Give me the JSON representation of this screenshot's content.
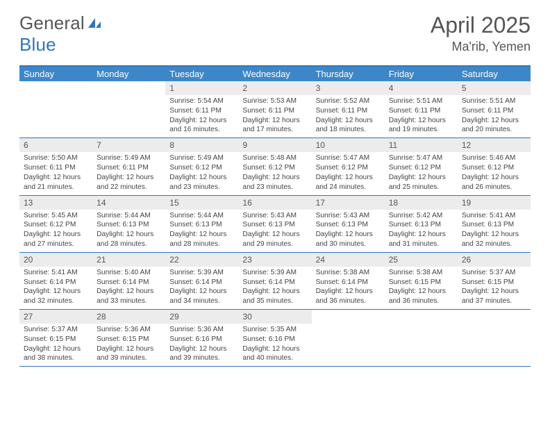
{
  "brand": {
    "general": "General",
    "blue": "Blue"
  },
  "header": {
    "month": "April 2025",
    "location": "Ma'rib, Yemen"
  },
  "colors": {
    "header_bg": "#3d87c9",
    "border": "#2f77bb",
    "daynum_bg": "#ececec",
    "text": "#444444",
    "title_text": "#555555"
  },
  "days_of_week": [
    "Sunday",
    "Monday",
    "Tuesday",
    "Wednesday",
    "Thursday",
    "Friday",
    "Saturday"
  ],
  "weeks": [
    [
      null,
      null,
      {
        "n": "1",
        "sr": "5:54 AM",
        "ss": "6:11 PM",
        "dl": "12 hours and 16 minutes."
      },
      {
        "n": "2",
        "sr": "5:53 AM",
        "ss": "6:11 PM",
        "dl": "12 hours and 17 minutes."
      },
      {
        "n": "3",
        "sr": "5:52 AM",
        "ss": "6:11 PM",
        "dl": "12 hours and 18 minutes."
      },
      {
        "n": "4",
        "sr": "5:51 AM",
        "ss": "6:11 PM",
        "dl": "12 hours and 19 minutes."
      },
      {
        "n": "5",
        "sr": "5:51 AM",
        "ss": "6:11 PM",
        "dl": "12 hours and 20 minutes."
      }
    ],
    [
      {
        "n": "6",
        "sr": "5:50 AM",
        "ss": "6:11 PM",
        "dl": "12 hours and 21 minutes."
      },
      {
        "n": "7",
        "sr": "5:49 AM",
        "ss": "6:11 PM",
        "dl": "12 hours and 22 minutes."
      },
      {
        "n": "8",
        "sr": "5:49 AM",
        "ss": "6:12 PM",
        "dl": "12 hours and 23 minutes."
      },
      {
        "n": "9",
        "sr": "5:48 AM",
        "ss": "6:12 PM",
        "dl": "12 hours and 23 minutes."
      },
      {
        "n": "10",
        "sr": "5:47 AM",
        "ss": "6:12 PM",
        "dl": "12 hours and 24 minutes."
      },
      {
        "n": "11",
        "sr": "5:47 AM",
        "ss": "6:12 PM",
        "dl": "12 hours and 25 minutes."
      },
      {
        "n": "12",
        "sr": "5:46 AM",
        "ss": "6:12 PM",
        "dl": "12 hours and 26 minutes."
      }
    ],
    [
      {
        "n": "13",
        "sr": "5:45 AM",
        "ss": "6:12 PM",
        "dl": "12 hours and 27 minutes."
      },
      {
        "n": "14",
        "sr": "5:44 AM",
        "ss": "6:13 PM",
        "dl": "12 hours and 28 minutes."
      },
      {
        "n": "15",
        "sr": "5:44 AM",
        "ss": "6:13 PM",
        "dl": "12 hours and 28 minutes."
      },
      {
        "n": "16",
        "sr": "5:43 AM",
        "ss": "6:13 PM",
        "dl": "12 hours and 29 minutes."
      },
      {
        "n": "17",
        "sr": "5:43 AM",
        "ss": "6:13 PM",
        "dl": "12 hours and 30 minutes."
      },
      {
        "n": "18",
        "sr": "5:42 AM",
        "ss": "6:13 PM",
        "dl": "12 hours and 31 minutes."
      },
      {
        "n": "19",
        "sr": "5:41 AM",
        "ss": "6:13 PM",
        "dl": "12 hours and 32 minutes."
      }
    ],
    [
      {
        "n": "20",
        "sr": "5:41 AM",
        "ss": "6:14 PM",
        "dl": "12 hours and 32 minutes."
      },
      {
        "n": "21",
        "sr": "5:40 AM",
        "ss": "6:14 PM",
        "dl": "12 hours and 33 minutes."
      },
      {
        "n": "22",
        "sr": "5:39 AM",
        "ss": "6:14 PM",
        "dl": "12 hours and 34 minutes."
      },
      {
        "n": "23",
        "sr": "5:39 AM",
        "ss": "6:14 PM",
        "dl": "12 hours and 35 minutes."
      },
      {
        "n": "24",
        "sr": "5:38 AM",
        "ss": "6:14 PM",
        "dl": "12 hours and 36 minutes."
      },
      {
        "n": "25",
        "sr": "5:38 AM",
        "ss": "6:15 PM",
        "dl": "12 hours and 36 minutes."
      },
      {
        "n": "26",
        "sr": "5:37 AM",
        "ss": "6:15 PM",
        "dl": "12 hours and 37 minutes."
      }
    ],
    [
      {
        "n": "27",
        "sr": "5:37 AM",
        "ss": "6:15 PM",
        "dl": "12 hours and 38 minutes."
      },
      {
        "n": "28",
        "sr": "5:36 AM",
        "ss": "6:15 PM",
        "dl": "12 hours and 39 minutes."
      },
      {
        "n": "29",
        "sr": "5:36 AM",
        "ss": "6:16 PM",
        "dl": "12 hours and 39 minutes."
      },
      {
        "n": "30",
        "sr": "5:35 AM",
        "ss": "6:16 PM",
        "dl": "12 hours and 40 minutes."
      },
      null,
      null,
      null
    ]
  ],
  "labels": {
    "sunrise": "Sunrise: ",
    "sunset": "Sunset: ",
    "daylight": "Daylight: "
  }
}
